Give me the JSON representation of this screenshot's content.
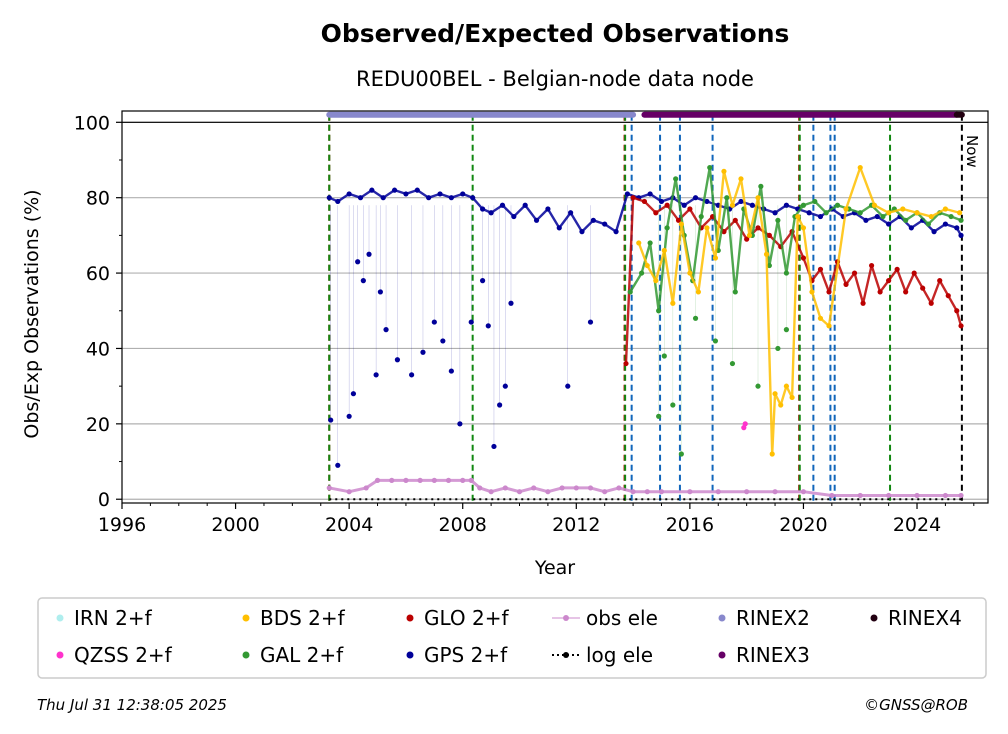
{
  "chart_data": {
    "type": "scatter",
    "title": "Observed/Expected Observations",
    "subtitle": "REDU00BEL - Belgian-node data node",
    "xlabel": "Year",
    "ylabel": "Obs/Exp Observations (%)",
    "xlim": [
      1996,
      2026.5
    ],
    "ylim": [
      -1,
      103
    ],
    "x_ticks": [
      1996,
      2000,
      2004,
      2008,
      2012,
      2016,
      2020,
      2024
    ],
    "y_ticks": [
      0,
      20,
      40,
      60,
      80,
      100
    ],
    "grid": "horizontal",
    "legend_position": "bottom",
    "now_label": "Now",
    "now_year": 2025.58,
    "legend": [
      {
        "name": "IRN 2+f",
        "color": "#afeeee",
        "marker": "dot"
      },
      {
        "name": "QZSS 2+f",
        "color": "#ff33cc",
        "marker": "dot"
      },
      {
        "name": "BDS 2+f",
        "color": "#ffbf00",
        "marker": "dot"
      },
      {
        "name": "GAL 2+f",
        "color": "#339933",
        "marker": "dot"
      },
      {
        "name": "GLO 2+f",
        "color": "#bb0000",
        "marker": "dot"
      },
      {
        "name": "GPS 2+f",
        "color": "#000099",
        "marker": "dot"
      },
      {
        "name": "obs ele",
        "color": "#cc88cc",
        "marker": "line-dot"
      },
      {
        "name": "log ele",
        "color": "#000000",
        "marker": "dotted-line"
      },
      {
        "name": "RINEX2",
        "color": "#8888cc",
        "marker": "dot"
      },
      {
        "name": "RINEX3",
        "color": "#660066",
        "marker": "dot"
      },
      {
        "name": "RINEX4",
        "color": "#220011",
        "marker": "dot"
      }
    ],
    "rinex_bars": [
      {
        "name": "RINEX2",
        "color": "#8888cc",
        "x": [
          2003.3,
          2014.0
        ],
        "y": 102
      },
      {
        "name": "RINEX3",
        "color": "#660066",
        "x": [
          2014.4,
          2025.4
        ],
        "y": 102
      },
      {
        "name": "RINEX4",
        "color": "#220011",
        "x": [
          2025.4,
          2025.58
        ],
        "y": 102
      }
    ],
    "vertical_events": [
      {
        "x": 2003.3,
        "color": "#bb0000",
        "style": "dashed"
      },
      {
        "x": 2003.3,
        "color": "#118811",
        "style": "dashed"
      },
      {
        "x": 2008.35,
        "color": "#118811",
        "style": "dashed"
      },
      {
        "x": 2013.7,
        "color": "#bb0000",
        "style": "dashed"
      },
      {
        "x": 2013.72,
        "color": "#118811",
        "style": "dashed"
      },
      {
        "x": 2013.95,
        "color": "#1166bb",
        "style": "dashed"
      },
      {
        "x": 2014.95,
        "color": "#1166bb",
        "style": "dashed"
      },
      {
        "x": 2015.65,
        "color": "#1166bb",
        "style": "dashed"
      },
      {
        "x": 2016.8,
        "color": "#1166bb",
        "style": "dashed"
      },
      {
        "x": 2019.85,
        "color": "#bb0000",
        "style": "dashed"
      },
      {
        "x": 2019.87,
        "color": "#118811",
        "style": "dashed"
      },
      {
        "x": 2020.35,
        "color": "#1166bb",
        "style": "dashed"
      },
      {
        "x": 2020.95,
        "color": "#1166bb",
        "style": "dashed"
      },
      {
        "x": 2021.1,
        "color": "#1166bb",
        "style": "dashed"
      },
      {
        "x": 2023.05,
        "color": "#118811",
        "style": "dashed"
      },
      {
        "x": 2025.58,
        "color": "#000000",
        "style": "dashed"
      }
    ],
    "series": [
      {
        "name": "GPS 2+f",
        "color": "#000099",
        "x": [
          2003.3,
          2003.6,
          2004.0,
          2004.4,
          2004.8,
          2005.2,
          2005.6,
          2006.0,
          2006.4,
          2006.8,
          2007.2,
          2007.6,
          2008.0,
          2008.35,
          2008.7,
          2009.0,
          2009.4,
          2009.8,
          2010.2,
          2010.6,
          2011.0,
          2011.4,
          2011.8,
          2012.2,
          2012.6,
          2013.0,
          2013.4,
          2013.8,
          2014.2,
          2014.6,
          2015.0,
          2015.4,
          2015.8,
          2016.2,
          2016.6,
          2017.0,
          2017.4,
          2017.8,
          2018.2,
          2018.6,
          2019.0,
          2019.4,
          2019.8,
          2020.2,
          2020.6,
          2021.0,
          2021.4,
          2021.8,
          2022.2,
          2022.6,
          2023.0,
          2023.4,
          2023.8,
          2024.2,
          2024.6,
          2025.0,
          2025.4,
          2025.55
        ],
        "y": [
          80,
          79,
          81,
          80,
          82,
          80,
          82,
          81,
          82,
          80,
          81,
          80,
          81,
          80,
          77,
          76,
          78,
          75,
          78,
          74,
          77,
          72,
          76,
          71,
          74,
          73,
          71,
          81,
          80,
          81,
          79,
          80,
          78,
          80,
          79,
          78,
          77,
          79,
          78,
          77,
          76,
          78,
          77,
          76,
          75,
          77,
          75,
          76,
          74,
          75,
          73,
          75,
          72,
          74,
          71,
          73,
          72,
          70
        ]
      },
      {
        "name": "GPS 2+f outliers",
        "color": "#000099",
        "x": [
          2003.35,
          2003.6,
          2004.0,
          2004.15,
          2004.3,
          2004.5,
          2004.7,
          2004.95,
          2005.1,
          2005.3,
          2005.7,
          2006.2,
          2006.6,
          2007.0,
          2007.3,
          2007.6,
          2007.9,
          2008.3,
          2008.7,
          2008.9,
          2009.1,
          2009.3,
          2009.5,
          2009.7,
          2011.7,
          2012.5
        ],
        "y": [
          21,
          9,
          22,
          28,
          63,
          58,
          65,
          33,
          55,
          45,
          37,
          33,
          39,
          47,
          42,
          34,
          20,
          47,
          58,
          46,
          14,
          25,
          30,
          52,
          30,
          47
        ]
      },
      {
        "name": "GLO 2+f",
        "color": "#bb0000",
        "x": [
          2013.75,
          2014.0,
          2014.4,
          2014.8,
          2015.2,
          2015.6,
          2016.0,
          2016.4,
          2016.8,
          2017.2,
          2017.6,
          2018.0,
          2018.4,
          2018.8,
          2019.2,
          2019.6,
          2020.0,
          2020.3,
          2020.6,
          2020.9,
          2021.2,
          2021.5,
          2021.8,
          2022.1,
          2022.4,
          2022.7,
          2023.0,
          2023.3,
          2023.6,
          2023.9,
          2024.2,
          2024.5,
          2024.8,
          2025.1,
          2025.4,
          2025.55
        ],
        "y": [
          36,
          80,
          79,
          76,
          78,
          74,
          77,
          72,
          75,
          71,
          74,
          69,
          72,
          70,
          67,
          71,
          64,
          58,
          61,
          55,
          63,
          57,
          60,
          52,
          62,
          55,
          58,
          61,
          55,
          60,
          56,
          52,
          58,
          54,
          50,
          46
        ]
      },
      {
        "name": "GAL 2+f",
        "color": "#339933",
        "x": [
          2013.9,
          2014.3,
          2014.6,
          2014.9,
          2015.2,
          2015.5,
          2015.8,
          2016.1,
          2016.4,
          2016.7,
          2017.0,
          2017.3,
          2017.6,
          2017.9,
          2018.2,
          2018.5,
          2018.8,
          2019.1,
          2019.4,
          2019.7,
          2020.0,
          2020.4,
          2020.8,
          2021.2,
          2021.6,
          2022.0,
          2022.4,
          2022.8,
          2023.2,
          2023.6,
          2024.0,
          2024.4,
          2024.8,
          2025.2,
          2025.55
        ],
        "y": [
          55,
          60,
          68,
          50,
          72,
          85,
          70,
          58,
          75,
          88,
          66,
          80,
          55,
          77,
          70,
          83,
          62,
          74,
          60,
          75,
          78,
          79,
          76,
          78,
          77,
          76,
          78,
          75,
          77,
          74,
          76,
          73,
          76,
          75,
          74
        ]
      },
      {
        "name": "GAL 2+f outliers",
        "color": "#339933",
        "x": [
          2014.9,
          2015.1,
          2015.4,
          2015.7,
          2016.2,
          2016.9,
          2017.5,
          2018.4,
          2019.1,
          2019.4
        ],
        "y": [
          22,
          38,
          25,
          12,
          48,
          42,
          36,
          30,
          40,
          45
        ]
      },
      {
        "name": "BDS 2+f",
        "color": "#ffbf00",
        "x": [
          2014.2,
          2014.5,
          2014.8,
          2015.1,
          2015.4,
          2015.7,
          2016.0,
          2016.3,
          2016.6,
          2016.9,
          2017.2,
          2017.5,
          2017.8,
          2018.1,
          2018.4,
          2018.7,
          2018.9,
          2019.0,
          2019.2,
          2019.4,
          2019.6,
          2019.8,
          2020.0,
          2020.3,
          2020.6,
          2020.9,
          2021.5,
          2022.0,
          2022.5,
          2023.0,
          2023.5,
          2024.0,
          2024.5,
          2025.0,
          2025.5
        ],
        "y": [
          68,
          62,
          58,
          66,
          52,
          73,
          60,
          55,
          72,
          64,
          87,
          78,
          85,
          70,
          80,
          65,
          12,
          28,
          25,
          30,
          27,
          75,
          72,
          55,
          48,
          46,
          77,
          88,
          78,
          76,
          77,
          76,
          75,
          77,
          76
        ]
      },
      {
        "name": "QZSS 2+f",
        "color": "#ff33cc",
        "x": [
          2017.9,
          2017.95
        ],
        "y": [
          19,
          20
        ]
      },
      {
        "name": "obs ele",
        "color": "#cc88cc",
        "x": [
          2003.3,
          2004.0,
          2004.6,
          2005.0,
          2005.5,
          2006.0,
          2006.5,
          2007.0,
          2007.5,
          2008.0,
          2008.3,
          2008.6,
          2009.0,
          2009.5,
          2010.0,
          2010.5,
          2011.0,
          2011.5,
          2012.0,
          2012.5,
          2013.0,
          2013.5,
          2014.0,
          2014.5,
          2015.0,
          2016.0,
          2017.0,
          2018.0,
          2019.0,
          2020.0,
          2021.0,
          2022.0,
          2023.0,
          2024.0,
          2025.0,
          2025.55
        ],
        "y": [
          3,
          2,
          3,
          5,
          5,
          5,
          5,
          5,
          5,
          5,
          5,
          3,
          2,
          3,
          2,
          3,
          2,
          3,
          3,
          3,
          2,
          3,
          2,
          2,
          2,
          2,
          2,
          2,
          2,
          2,
          1,
          1,
          1,
          1,
          1,
          1
        ]
      },
      {
        "name": "log ele",
        "color": "#000000",
        "x": [
          2003.3,
          2025.58
        ],
        "y": [
          0,
          0
        ]
      }
    ]
  },
  "footer": {
    "timestamp": "Thu Jul 31 12:38:05 2025",
    "credit": "©GNSS@ROB"
  }
}
